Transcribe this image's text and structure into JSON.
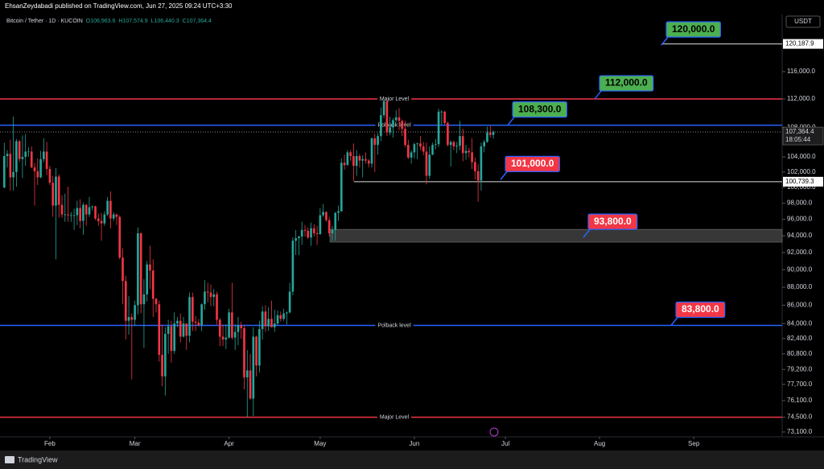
{
  "header": {
    "published": "EhsanZeydabadi published on TradingView.com, Jun 27, 2025 09:24 UTC+3:30",
    "footer": "TradingView"
  },
  "chart_data": {
    "type": "candlestick",
    "symbol": "Bitcoin / Tether · 1D · KUCOIN",
    "last_ohlc_labels": [
      "O106,963.6",
      "H107,574.9",
      "L106,440.3",
      "C107,364.4"
    ],
    "currency": "USDT",
    "log_scale": true,
    "grid": false,
    "up_color": "#26a69a",
    "down_color": "#f23645",
    "xlim": [
      -1.4,
      256.1
    ],
    "ylim": [
      72650,
      124550
    ],
    "xticks": [
      {
        "value": 15,
        "label": "Feb"
      },
      {
        "value": 43,
        "label": "Mar"
      },
      {
        "value": 74,
        "label": "Apr"
      },
      {
        "value": 104,
        "label": "May"
      },
      {
        "value": 135,
        "label": "Jun"
      },
      {
        "value": 165,
        "label": "Jul"
      },
      {
        "value": 196,
        "label": "Aug"
      },
      {
        "value": 227,
        "label": "Sep"
      }
    ],
    "yticks": [
      {
        "value": 116000,
        "label": "116,000.0"
      },
      {
        "value": 112000,
        "label": "112,000.0"
      },
      {
        "value": 108000,
        "label": "108,000.0"
      },
      {
        "value": 104000,
        "label": "104,000.0"
      },
      {
        "value": 102000,
        "label": "102,000.0"
      },
      {
        "value": 100000,
        "label": "100,000.0"
      },
      {
        "value": 98000,
        "label": "98,000.0"
      },
      {
        "value": 96000,
        "label": "96,000.0"
      },
      {
        "value": 94000,
        "label": "94,000.0"
      },
      {
        "value": 92000,
        "label": "92,000.0"
      },
      {
        "value": 90000,
        "label": "90,000.0"
      },
      {
        "value": 88000,
        "label": "88,000.0"
      },
      {
        "value": 86000,
        "label": "86,000.0"
      },
      {
        "value": 84000,
        "label": "84,000.0"
      },
      {
        "value": 82400,
        "label": "82,400.0"
      },
      {
        "value": 80800,
        "label": "80,800.0"
      },
      {
        "value": 79200,
        "label": "79,200.0"
      },
      {
        "value": 77700,
        "label": "77,700.0"
      },
      {
        "value": 76100,
        "label": "76,100.0"
      },
      {
        "value": 74500,
        "label": "74,500.0"
      },
      {
        "value": 73100,
        "label": "73,100.0"
      }
    ],
    "open": [
      100000,
      104100,
      104400,
      101300,
      102000,
      106100,
      103700,
      104000,
      104700,
      104700,
      102600,
      102100,
      101300,
      103700,
      104700,
      102400,
      100600,
      97700,
      101400,
      97800,
      96600,
      96600,
      96500,
      96500,
      96500,
      97400,
      95800,
      97800,
      96600,
      97500,
      97600,
      96100,
      95800,
      95500,
      96600,
      98300,
      96100,
      96600,
      96300,
      91400,
      88700,
      84300,
      84700,
      84400,
      86000,
      94300,
      86100,
      87200,
      90600,
      89900,
      86700,
      86100,
      80700,
      78500,
      82900,
      83700,
      81100,
      84000,
      84300,
      82600,
      84000,
      82700,
      86900,
      84200,
      84100,
      83800,
      86100,
      87500,
      87400,
      86900,
      87200,
      84400,
      82600,
      82300,
      82500,
      85200,
      82500,
      83100,
      83800,
      83500,
      78400,
      79100,
      76300,
      82600,
      79600,
      83400,
      85300,
      83700,
      84500,
      83600,
      84000,
      84900,
      84500,
      85100,
      85200,
      87500,
      93400,
      93700,
      93900,
      94700,
      94600,
      93800,
      94900,
      94300,
      94200,
      96500,
      96900,
      95900,
      94300,
      94700,
      96800,
      97000,
      103200,
      102900,
      104600,
      104100,
      102800,
      104100,
      103500,
      103700,
      103500,
      103100,
      106500,
      105600,
      106800,
      109700,
      111700,
      107300,
      108000,
      109000,
      109400,
      108900,
      107800,
      105600,
      103900,
      104600,
      105700,
      105800,
      105400,
      104700,
      101500,
      104300,
      105600,
      105700,
      110200,
      110200,
      108600,
      105600,
      106000,
      105400,
      105500,
      106800,
      104500,
      104800,
      104600,
      103300,
      102100,
      100900,
      105400,
      106000,
      107300,
      106963.6
    ],
    "high": [
      105900,
      104900,
      106300,
      109500,
      106400,
      106300,
      106900,
      107100,
      105300,
      105400,
      103200,
      103800,
      104800,
      106500,
      106000,
      102800,
      101500,
      102500,
      101700,
      99000,
      99200,
      100100,
      96900,
      97300,
      98300,
      98500,
      98100,
      97900,
      98800,
      97700,
      97700,
      96700,
      96800,
      97000,
      98800,
      99500,
      96900,
      96700,
      96500,
      92500,
      89300,
      87000,
      85100,
      86500,
      95000,
      94400,
      88900,
      91000,
      92800,
      91200,
      86800,
      86500,
      83900,
      83600,
      84400,
      84300,
      85200,
      84700,
      85100,
      84700,
      84000,
      87400,
      87400,
      84800,
      84500,
      86200,
      88800,
      88500,
      88300,
      87800,
      87500,
      84600,
      83900,
      83900,
      85600,
      88500,
      83900,
      84700,
      84200,
      83800,
      81200,
      80800,
      83600,
      82700,
      84300,
      85900,
      86000,
      85800,
      86500,
      85500,
      85400,
      85300,
      85600,
      85300,
      88500,
      93800,
      94700,
      94000,
      95700,
      95300,
      95000,
      95600,
      95400,
      95200,
      97400,
      97900,
      97000,
      96300,
      95200,
      96900,
      97700,
      103800,
      104300,
      104900,
      104900,
      105800,
      104900,
      104400,
      104200,
      104600,
      103700,
      106600,
      107100,
      107200,
      110800,
      111900,
      111800,
      109500,
      109300,
      110400,
      110700,
      109100,
      108900,
      106300,
      104900,
      105900,
      105900,
      106800,
      106000,
      105900,
      105400,
      105900,
      106400,
      110600,
      110400,
      110300,
      108800,
      106200,
      106200,
      106000,
      108900,
      107800,
      105600,
      105200,
      106500,
      103900,
      103000,
      105900,
      106300,
      108100,
      108200,
      107574.9
    ],
    "low": [
      99900,
      102600,
      99600,
      99600,
      100100,
      103300,
      101200,
      102800,
      104000,
      102500,
      97700,
      100300,
      101200,
      103300,
      101600,
      100300,
      96300,
      91200,
      96200,
      96200,
      95700,
      95700,
      95700,
      94700,
      95300,
      94900,
      94100,
      95200,
      96300,
      97100,
      95900,
      95200,
      93400,
      95200,
      96400,
      94900,
      95800,
      95300,
      91200,
      86100,
      82300,
      82800,
      78200,
      83800,
      85000,
      85100,
      81400,
      86400,
      87800,
      84700,
      85200,
      80000,
      77500,
      76600,
      80800,
      79900,
      80800,
      83600,
      82000,
      82500,
      81200,
      82000,
      83200,
      83200,
      83700,
      83200,
      85500,
      86300,
      85900,
      85900,
      83900,
      81600,
      81600,
      81300,
      82400,
      82300,
      81200,
      81700,
      82400,
      77200,
      74500,
      76200,
      74600,
      78500,
      78900,
      82300,
      83100,
      83200,
      83600,
      83100,
      83800,
      84200,
      84300,
      83900,
      85100,
      87100,
      91700,
      91700,
      92900,
      93900,
      93600,
      92800,
      93900,
      92900,
      94100,
      96300,
      95700,
      93900,
      93400,
      93400,
      95800,
      96900,
      102300,
      102900,
      103500,
      100800,
      101500,
      102600,
      101300,
      103100,
      102600,
      102600,
      102000,
      104300,
      106100,
      109300,
      106800,
      106900,
      106600,
      108700,
      107600,
      106800,
      105300,
      103700,
      103100,
      103800,
      103700,
      104900,
      104200,
      100400,
      101100,
      104200,
      105000,
      105300,
      108400,
      108300,
      105400,
      102700,
      104900,
      104500,
      104900,
      103400,
      103600,
      103900,
      102400,
      101000,
      98200,
      99600,
      104600,
      105900,
      106600,
      106440.3
    ],
    "close": [
      104100,
      104400,
      101300,
      102000,
      106100,
      103700,
      104000,
      104700,
      104700,
      102600,
      102100,
      101300,
      103700,
      104700,
      102400,
      100600,
      97700,
      101400,
      97800,
      96600,
      96600,
      96500,
      96500,
      96500,
      97400,
      95800,
      97800,
      96600,
      97500,
      97600,
      96100,
      95800,
      95500,
      96600,
      98300,
      96100,
      96600,
      96300,
      91400,
      88700,
      84300,
      84700,
      84400,
      86000,
      94300,
      86100,
      87200,
      90600,
      89900,
      86700,
      86100,
      80700,
      78500,
      82900,
      83700,
      81100,
      84000,
      84300,
      82600,
      84000,
      82700,
      86900,
      84200,
      84100,
      83800,
      86100,
      87500,
      87400,
      86900,
      87200,
      84400,
      82600,
      82300,
      82500,
      85200,
      82500,
      83100,
      83800,
      83500,
      78400,
      79100,
      76300,
      82600,
      79600,
      83400,
      85300,
      83700,
      84500,
      83600,
      84000,
      84900,
      84500,
      85100,
      85200,
      87500,
      93400,
      93700,
      93900,
      94700,
      94600,
      93800,
      94900,
      94300,
      94200,
      96500,
      96900,
      95900,
      94300,
      94700,
      96800,
      97000,
      103200,
      102900,
      104600,
      104100,
      102800,
      104100,
      103500,
      103700,
      103500,
      103100,
      106500,
      105600,
      106800,
      109700,
      111700,
      107300,
      108000,
      109000,
      109400,
      108900,
      107800,
      105600,
      103900,
      104600,
      105700,
      105800,
      105400,
      104700,
      101500,
      104300,
      105600,
      105700,
      110200,
      110200,
      108600,
      105600,
      106000,
      105400,
      105500,
      106800,
      104500,
      104800,
      104600,
      103300,
      102100,
      100900,
      105400,
      106000,
      107300,
      106963.6,
      107364.4
    ],
    "levels": [
      {
        "value": 112000,
        "label": "Major Level",
        "color": "#f23645"
      },
      {
        "value": 108300,
        "label": "Polback level",
        "color": "#2962ff"
      },
      {
        "value": 83800,
        "label": "Polback level",
        "color": "#2962ff"
      },
      {
        "value": 74500,
        "label": "Major Level",
        "color": "#f23645"
      }
    ],
    "zone": [
      93230,
      94770
    ],
    "marked_prices": [
      {
        "value": 120187.9,
        "label": "120,187.9"
      },
      {
        "value": 100739.3,
        "label": "100,739.3"
      }
    ],
    "current_price": {
      "value": 107364.4,
      "label": "107,364.4",
      "countdown": "18:05:44"
    },
    "callouts": [
      {
        "value": 120000,
        "label": "120,000.0",
        "color": "#4caf50",
        "text_color": "#000000"
      },
      {
        "value": 112000,
        "label": "112,000.0",
        "color": "#4caf50",
        "text_color": "#000000"
      },
      {
        "value": 108300,
        "label": "108,300.0",
        "color": "#4caf50",
        "text_color": "#000000"
      },
      {
        "value": 101000,
        "label": "101,000.0",
        "color": "#f23645",
        "text_color": "#ffffff"
      },
      {
        "value": 93800,
        "label": "93,800.0",
        "color": "#f23645",
        "text_color": "#ffffff"
      },
      {
        "value": 83800,
        "label": "83,800.0",
        "color": "#f23645",
        "text_color": "#ffffff"
      }
    ]
  }
}
